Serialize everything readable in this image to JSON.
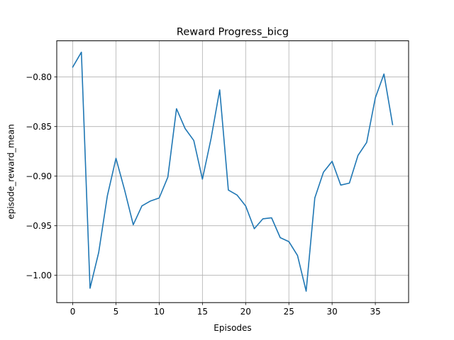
{
  "chart_data": {
    "type": "line",
    "title": "Reward Progress_bicg",
    "xlabel": "Episodes",
    "ylabel": "episode_reward_mean",
    "xlim": [
      -1.85,
      38.85
    ],
    "ylim": [
      -1.0275,
      -0.7635
    ],
    "grid": true,
    "line_color": "#1f77b4",
    "x_ticks": [
      0,
      5,
      10,
      15,
      20,
      25,
      30,
      35
    ],
    "x_tick_labels": [
      "0",
      "5",
      "10",
      "15",
      "20",
      "25",
      "30",
      "35"
    ],
    "y_ticks": [
      -1.0,
      -0.95,
      -0.9,
      -0.85,
      -0.8
    ],
    "y_tick_labels": [
      "−1.00",
      "−0.95",
      "−0.90",
      "−0.85",
      "−0.80"
    ],
    "series": [
      {
        "x": [
          0,
          1,
          2,
          3,
          4,
          5,
          6,
          7,
          8,
          9,
          10,
          11,
          12,
          13,
          14,
          15,
          16,
          17,
          18,
          19,
          20,
          21,
          22,
          23,
          24,
          25,
          26,
          27,
          28,
          29,
          30,
          31,
          32,
          33,
          34,
          35,
          36,
          37
        ],
        "values": [
          -0.79,
          -0.775,
          -1.013,
          -0.977,
          -0.92,
          -0.882,
          -0.914,
          -0.949,
          -0.93,
          -0.925,
          -0.922,
          -0.901,
          -0.832,
          -0.852,
          -0.864,
          -0.903,
          -0.862,
          -0.813,
          -0.914,
          -0.919,
          -0.93,
          -0.953,
          -0.943,
          -0.942,
          -0.962,
          -0.966,
          -0.98,
          -1.016,
          -0.922,
          -0.896,
          -0.885,
          -0.909,
          -0.907,
          -0.879,
          -0.866,
          -0.821,
          -0.797,
          -0.848
        ]
      }
    ]
  }
}
